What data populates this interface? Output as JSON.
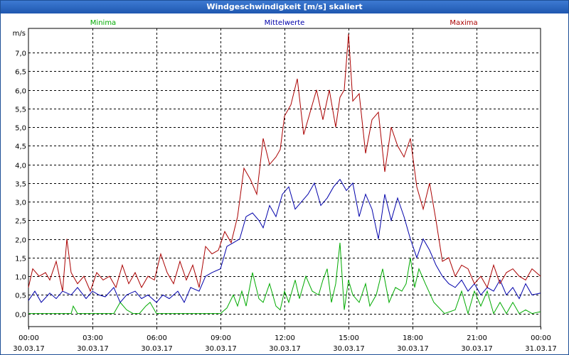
{
  "window": {
    "title": "Windgeschwindigkeit [m/s] skaliert"
  },
  "chart_data": {
    "type": "line",
    "title": "Windgeschwindigkeit [m/s] skaliert",
    "ylabel": "m/s",
    "xlabel": "",
    "ylim": [
      -0.35,
      7.65
    ],
    "yticks": [
      0.0,
      0.5,
      1.0,
      1.5,
      2.0,
      2.5,
      3.0,
      3.5,
      4.0,
      4.5,
      5.0,
      5.5,
      6.0,
      6.5,
      7.0
    ],
    "ytick_labels": [
      "0,0",
      "0,5",
      "1,0",
      "1,5",
      "2,0",
      "2,5",
      "3,0",
      "3,5",
      "4,0",
      "4,5",
      "5,0",
      "5,5",
      "6,0",
      "6,5",
      "7,0"
    ],
    "xlim": [
      0,
      24
    ],
    "xticks": [
      0,
      3,
      6,
      9,
      12,
      15,
      18,
      21,
      24
    ],
    "xtick_times": [
      "00:00",
      "03:00",
      "06:00",
      "09:00",
      "12:00",
      "15:00",
      "18:00",
      "21:00",
      "00:00"
    ],
    "xtick_dates": [
      "30.03.17",
      "30.03.17",
      "30.03.17",
      "30.03.17",
      "30.03.17",
      "30.03.17",
      "30.03.17",
      "30.03.17",
      "31.03.17"
    ],
    "grid": true,
    "series": [
      {
        "name": "Minima",
        "color": "#00aa00",
        "x": [
          0,
          0.5,
          1,
          1.5,
          2,
          2.1,
          2.3,
          2.6,
          3,
          3.5,
          4,
          4.3,
          4.6,
          4.9,
          5.2,
          5.5,
          5.7,
          6,
          6.5,
          7,
          7.5,
          8,
          8.5,
          9,
          9.3,
          9.6,
          9.8,
          10,
          10.2,
          10.5,
          10.8,
          11,
          11.3,
          11.6,
          11.8,
          12,
          12.2,
          12.5,
          12.7,
          13,
          13.3,
          13.6,
          13.8,
          14,
          14.2,
          14.4,
          14.6,
          14.8,
          15,
          15.2,
          15.5,
          15.8,
          16,
          16.3,
          16.6,
          16.9,
          17.2,
          17.5,
          17.7,
          17.9,
          18.1,
          18.3,
          18.6,
          19,
          19.5,
          20,
          20.3,
          20.6,
          20.9,
          21.2,
          21.5,
          21.8,
          22.1,
          22.4,
          22.7,
          23,
          23.3,
          23.6,
          24
        ],
        "y": [
          0.0,
          0.0,
          0.0,
          0.0,
          0.0,
          0.2,
          0.0,
          0.0,
          0.0,
          0.0,
          0.0,
          0.3,
          0.1,
          0.0,
          0.0,
          0.2,
          0.3,
          0.0,
          0.0,
          0.0,
          0.0,
          0.0,
          0.0,
          0.0,
          0.15,
          0.5,
          0.2,
          0.6,
          0.2,
          1.1,
          0.4,
          0.3,
          0.8,
          0.2,
          0.1,
          0.6,
          0.3,
          0.9,
          0.4,
          1.0,
          0.6,
          0.5,
          0.9,
          1.2,
          0.3,
          0.8,
          1.9,
          0.1,
          0.9,
          0.5,
          0.3,
          0.8,
          0.2,
          0.5,
          1.2,
          0.3,
          0.7,
          0.6,
          0.8,
          1.5,
          0.7,
          1.2,
          0.8,
          0.3,
          0.0,
          0.1,
          0.6,
          0.0,
          0.6,
          0.2,
          0.6,
          0.0,
          0.3,
          0.0,
          0.3,
          0.0,
          0.1,
          0.0,
          0.05
        ]
      },
      {
        "name": "Mittelwerte",
        "color": "#0000aa",
        "x": [
          0,
          0.3,
          0.6,
          1,
          1.3,
          1.6,
          2,
          2.3,
          2.7,
          3,
          3.3,
          3.6,
          4,
          4.3,
          4.6,
          5,
          5.3,
          5.6,
          6,
          6.3,
          6.6,
          7,
          7.3,
          7.6,
          8,
          8.3,
          8.6,
          9,
          9.3,
          9.6,
          9.9,
          10.2,
          10.5,
          10.8,
          11,
          11.3,
          11.6,
          11.9,
          12.2,
          12.5,
          12.8,
          13.1,
          13.4,
          13.7,
          14,
          14.3,
          14.6,
          14.9,
          15.2,
          15.5,
          15.8,
          16.1,
          16.4,
          16.7,
          17,
          17.3,
          17.6,
          17.9,
          18.2,
          18.5,
          18.8,
          19.1,
          19.4,
          19.7,
          20,
          20.3,
          20.6,
          20.9,
          21.2,
          21.5,
          21.8,
          22.1,
          22.4,
          22.7,
          23,
          23.3,
          23.6,
          24
        ],
        "y": [
          0.35,
          0.6,
          0.3,
          0.55,
          0.4,
          0.6,
          0.5,
          0.7,
          0.4,
          0.6,
          0.5,
          0.45,
          0.7,
          0.3,
          0.5,
          0.6,
          0.4,
          0.5,
          0.3,
          0.5,
          0.4,
          0.6,
          0.3,
          0.7,
          0.6,
          1.0,
          1.1,
          1.2,
          1.8,
          1.9,
          2.0,
          2.6,
          2.7,
          2.5,
          2.3,
          2.9,
          2.6,
          3.2,
          3.4,
          2.8,
          3.0,
          3.2,
          3.5,
          2.9,
          3.1,
          3.4,
          3.6,
          3.3,
          3.5,
          2.6,
          3.2,
          2.8,
          2.0,
          3.2,
          2.5,
          3.1,
          2.6,
          2.0,
          1.5,
          2.0,
          1.7,
          1.3,
          1.0,
          0.8,
          0.7,
          0.9,
          0.6,
          0.8,
          0.5,
          0.7,
          0.6,
          0.9,
          0.5,
          0.7,
          0.4,
          0.8,
          0.5,
          0.55
        ]
      },
      {
        "name": "Maxima",
        "color": "#aa0000",
        "x": [
          0,
          0.2,
          0.5,
          0.8,
          1,
          1.3,
          1.6,
          1.8,
          2,
          2.3,
          2.6,
          2.9,
          3.2,
          3.5,
          3.8,
          4.1,
          4.4,
          4.7,
          5,
          5.3,
          5.6,
          5.9,
          6.2,
          6.5,
          6.8,
          7.1,
          7.4,
          7.7,
          8,
          8.3,
          8.6,
          8.9,
          9.2,
          9.5,
          9.8,
          10.1,
          10.4,
          10.7,
          11,
          11.3,
          11.6,
          11.8,
          12,
          12.3,
          12.6,
          12.9,
          13.2,
          13.5,
          13.8,
          14.1,
          14.4,
          14.6,
          14.8,
          15,
          15.2,
          15.5,
          15.8,
          16.1,
          16.4,
          16.7,
          17,
          17.3,
          17.6,
          17.9,
          18.2,
          18.5,
          18.8,
          19.1,
          19.4,
          19.7,
          20,
          20.3,
          20.6,
          20.9,
          21.2,
          21.5,
          21.8,
          22.1,
          22.4,
          22.7,
          23,
          23.3,
          23.6,
          24
        ],
        "y": [
          0.7,
          1.2,
          1.0,
          1.1,
          0.9,
          1.4,
          0.6,
          2.0,
          1.1,
          0.8,
          1.0,
          0.6,
          1.1,
          0.9,
          1.0,
          0.7,
          1.3,
          0.8,
          1.1,
          0.7,
          1.0,
          0.9,
          1.6,
          1.1,
          0.8,
          1.4,
          0.9,
          1.3,
          0.7,
          1.8,
          1.6,
          1.7,
          2.2,
          1.9,
          2.6,
          3.9,
          3.6,
          3.2,
          4.7,
          4.0,
          4.2,
          4.4,
          5.3,
          5.6,
          6.3,
          4.8,
          5.4,
          6.0,
          5.2,
          6.0,
          5.0,
          5.8,
          6.0,
          7.5,
          5.7,
          5.9,
          4.3,
          5.2,
          5.4,
          3.8,
          5.0,
          4.5,
          4.2,
          4.7,
          3.4,
          2.8,
          3.5,
          2.5,
          1.4,
          1.5,
          1.0,
          1.3,
          1.2,
          0.8,
          1.0,
          0.7,
          1.3,
          0.8,
          1.1,
          1.2,
          1.0,
          0.9,
          1.2,
          1.0
        ]
      }
    ]
  }
}
